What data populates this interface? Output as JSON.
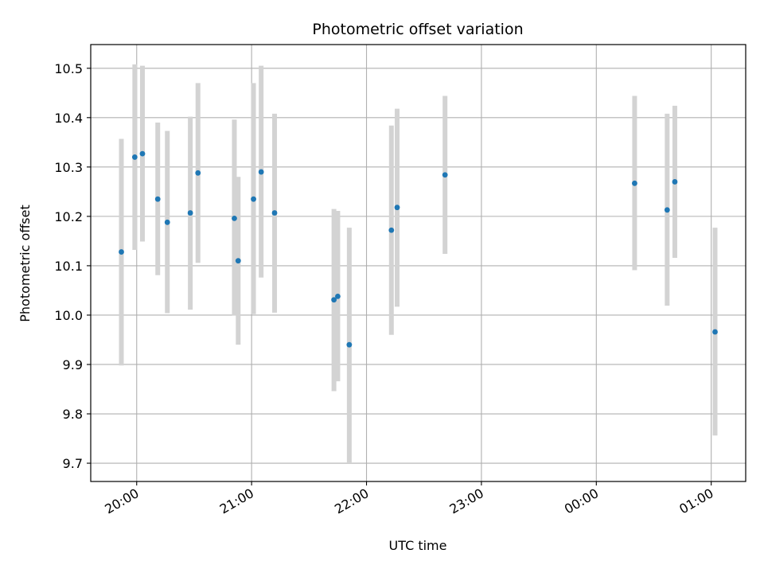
{
  "chart_data": {
    "type": "scatter",
    "title": "Photometric offset variation",
    "xlabel": "UTC time",
    "ylabel": "Photometric offset",
    "xlim": [
      "19:36",
      "01:18"
    ],
    "ylim": [
      9.663,
      10.548
    ],
    "xticks": [
      {
        "label": "20:00",
        "time": "20:00"
      },
      {
        "label": "21:00",
        "time": "21:00"
      },
      {
        "label": "22:00",
        "time": "22:00"
      },
      {
        "label": "23:00",
        "time": "23:00"
      },
      {
        "label": "00:00",
        "time": "00:00"
      },
      {
        "label": "01:00",
        "time": "01:00"
      }
    ],
    "yticks": [
      "9.7",
      "9.8",
      "9.9",
      "10.0",
      "10.1",
      "10.2",
      "10.3",
      "10.4",
      "10.5"
    ],
    "grid": true,
    "marker_color": "#1f77b4",
    "errorbar_color": "#d3d3d3",
    "points": [
      {
        "time": "19:52",
        "y": 10.128,
        "err_low": 9.898,
        "err_high": 10.357
      },
      {
        "time": "19:59",
        "y": 10.32,
        "err_low": 10.132,
        "err_high": 10.508
      },
      {
        "time": "20:03",
        "y": 10.327,
        "err_low": 10.149,
        "err_high": 10.505
      },
      {
        "time": "20:11",
        "y": 10.235,
        "err_low": 10.081,
        "err_high": 10.39
      },
      {
        "time": "20:16",
        "y": 10.188,
        "err_low": 10.004,
        "err_high": 10.373
      },
      {
        "time": "20:28",
        "y": 10.207,
        "err_low": 10.011,
        "err_high": 10.402
      },
      {
        "time": "20:32",
        "y": 10.288,
        "err_low": 10.106,
        "err_high": 10.47
      },
      {
        "time": "20:51",
        "y": 10.196,
        "err_low": 9.999,
        "err_high": 10.396
      },
      {
        "time": "20:53",
        "y": 10.11,
        "err_low": 9.94,
        "err_high": 10.28
      },
      {
        "time": "21:01",
        "y": 10.235,
        "err_low": 10.002,
        "err_high": 10.47
      },
      {
        "time": "21:05",
        "y": 10.29,
        "err_low": 10.076,
        "err_high": 10.505
      },
      {
        "time": "21:12",
        "y": 10.207,
        "err_low": 10.005,
        "err_high": 10.408
      },
      {
        "time": "21:43",
        "y": 10.031,
        "err_low": 9.846,
        "err_high": 10.215
      },
      {
        "time": "21:45",
        "y": 10.038,
        "err_low": 9.866,
        "err_high": 10.211
      },
      {
        "time": "21:51",
        "y": 9.94,
        "err_low": 9.7,
        "err_high": 10.177
      },
      {
        "time": "22:13",
        "y": 10.172,
        "err_low": 9.96,
        "err_high": 10.384
      },
      {
        "time": "22:16",
        "y": 10.218,
        "err_low": 10.017,
        "err_high": 10.418
      },
      {
        "time": "22:41",
        "y": 10.284,
        "err_low": 10.124,
        "err_high": 10.444
      },
      {
        "time": "00:20",
        "y": 10.267,
        "err_low": 10.091,
        "err_high": 10.444
      },
      {
        "time": "00:37",
        "y": 10.213,
        "err_low": 10.019,
        "err_high": 10.408
      },
      {
        "time": "00:41",
        "y": 10.27,
        "err_low": 10.116,
        "err_high": 10.424
      },
      {
        "time": "01:02",
        "y": 9.966,
        "err_low": 9.756,
        "err_high": 10.177
      }
    ]
  }
}
